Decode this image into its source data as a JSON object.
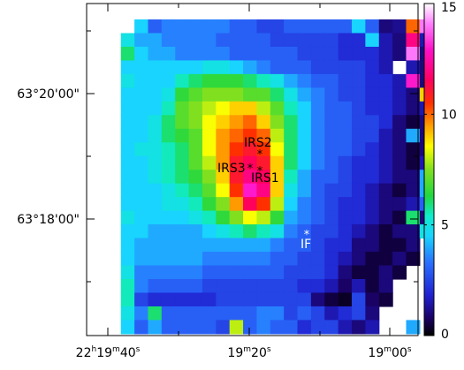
{
  "chart_data": {
    "type": "heatmap",
    "title": "",
    "xlabel": "",
    "ylabel": "",
    "x_ticks": [
      {
        "label_h": "22",
        "label_m": "19",
        "label_s": "40",
        "value_s": 80380
      },
      {
        "label_h": "",
        "label_m": "19",
        "label_s": "20",
        "value_s": 80360
      },
      {
        "label_h": "",
        "label_m": "19",
        "label_s": "00",
        "value_s": 80340
      }
    ],
    "y_ticks": [
      {
        "label": "63°20'00\"",
        "value_arcsec": 229200
      },
      {
        "label": "63°18'00\"",
        "value_arcsec": 229080
      }
    ],
    "colorbar": {
      "ticks": [
        "0",
        "5",
        "10",
        "15"
      ],
      "tick_values": [
        0,
        5,
        10,
        15
      ],
      "range": [
        0,
        15
      ],
      "colormap": "rainbow (black-blue-cyan-green-yellow-red-magenta-white)"
    },
    "sources": [
      {
        "label": "IRS2",
        "label_color": "#000000"
      },
      {
        "label": "IRS3",
        "label_color": "#000000"
      },
      {
        "label": "IRS1",
        "label_color": "#000000"
      },
      {
        "label": "IF",
        "label_color": "#ffffff"
      }
    ],
    "intensity_grid": [
      [
        -1,
        -1,
        -1,
        4.5,
        3.0,
        3.5,
        3.5,
        3.5,
        3.5,
        3.5,
        3.0,
        3.0,
        2.5,
        2.5,
        3.0,
        3.0,
        3.0,
        3.0,
        3.0,
        4.5,
        3.0,
        1.0,
        1.2,
        10.0,
        14.0
      ],
      [
        -1,
        -1,
        5.0,
        4.0,
        4.0,
        3.5,
        3.5,
        3.5,
        3.5,
        3.0,
        3.0,
        3.0,
        3.0,
        2.5,
        2.5,
        2.5,
        2.5,
        2.5,
        2.0,
        2.0,
        4.5,
        1.5,
        1.0,
        12.0,
        1.5
      ],
      [
        -1,
        -1,
        6.0,
        4.5,
        4.0,
        4.0,
        3.5,
        3.5,
        3.5,
        3.5,
        3.0,
        3.0,
        3.0,
        3.0,
        3.0,
        2.5,
        2.5,
        2.5,
        2.0,
        2.0,
        2.0,
        1.5,
        1.0,
        14.0,
        1.0
      ],
      [
        -1,
        -1,
        4.5,
        4.5,
        4.5,
        4.5,
        4.5,
        4.5,
        5.0,
        5.0,
        4.5,
        4.0,
        3.5,
        3.0,
        3.0,
        3.0,
        2.5,
        2.5,
        2.5,
        2.5,
        2.0,
        1.5,
        -1,
        1.5,
        1.0
      ],
      [
        -1,
        -1,
        5.0,
        4.5,
        4.5,
        4.5,
        5.5,
        6.0,
        6.5,
        6.5,
        6.5,
        6.0,
        5.5,
        5.0,
        4.0,
        3.5,
        3.0,
        3.0,
        2.5,
        2.5,
        2.0,
        2.0,
        1.5,
        13.0,
        1.0
      ],
      [
        -1,
        -1,
        4.5,
        4.5,
        4.5,
        5.0,
        6.5,
        7.0,
        7.5,
        7.5,
        7.5,
        7.0,
        7.0,
        6.0,
        5.0,
        4.0,
        3.5,
        3.0,
        2.5,
        2.5,
        2.0,
        2.0,
        1.5,
        1.0,
        9.0
      ],
      [
        -1,
        -1,
        4.5,
        4.5,
        4.5,
        5.5,
        7.0,
        7.5,
        8.0,
        8.5,
        9.0,
        9.0,
        8.0,
        7.0,
        5.5,
        4.5,
        3.5,
        3.0,
        3.0,
        2.5,
        2.0,
        2.0,
        1.5,
        1.0,
        1.5
      ],
      [
        -1,
        -1,
        4.5,
        4.5,
        5.0,
        6.0,
        7.0,
        7.5,
        8.5,
        9.0,
        9.5,
        10.0,
        9.0,
        7.5,
        6.0,
        4.5,
        3.5,
        3.0,
        3.0,
        2.5,
        2.5,
        2.0,
        1.0,
        0.5,
        1.0
      ],
      [
        -1,
        -1,
        4.5,
        4.5,
        5.0,
        6.0,
        6.5,
        7.0,
        8.5,
        9.5,
        10.0,
        10.5,
        10.0,
        8.0,
        6.0,
        4.5,
        3.5,
        3.0,
        3.0,
        2.5,
        2.5,
        1.5,
        1.0,
        4.0,
        1.0
      ],
      [
        -1,
        -1,
        4.5,
        5.0,
        5.0,
        5.5,
        6.0,
        7.0,
        8.5,
        9.5,
        10.5,
        11.0,
        10.5,
        8.5,
        6.0,
        4.5,
        3.5,
        3.0,
        3.0,
        2.5,
        2.0,
        1.5,
        1.0,
        0.5,
        1.0
      ],
      [
        -1,
        -1,
        4.5,
        4.5,
        5.0,
        5.5,
        6.0,
        7.0,
        8.0,
        9.5,
        11.0,
        11.5,
        11.0,
        9.0,
        6.0,
        4.5,
        3.5,
        3.0,
        2.5,
        2.0,
        2.0,
        1.5,
        1.0,
        0.5,
        1.5
      ],
      [
        -1,
        -1,
        4.5,
        4.5,
        5.0,
        5.5,
        6.0,
        6.5,
        7.5,
        9.0,
        11.0,
        12.0,
        11.5,
        9.0,
        5.5,
        4.0,
        3.0,
        3.0,
        2.5,
        2.0,
        2.0,
        1.5,
        1.0,
        1.0,
        4.0
      ],
      [
        -1,
        -1,
        4.5,
        4.5,
        4.5,
        5.0,
        5.5,
        6.0,
        7.0,
        8.5,
        10.5,
        13.0,
        12.0,
        9.0,
        5.0,
        4.0,
        3.0,
        2.5,
        2.5,
        2.0,
        1.5,
        1.0,
        0.5,
        1.0,
        4.0
      ],
      [
        -1,
        -1,
        4.5,
        4.5,
        4.5,
        5.0,
        5.0,
        5.5,
        6.5,
        7.5,
        9.5,
        11.5,
        10.5,
        8.0,
        4.5,
        3.5,
        3.0,
        2.5,
        2.0,
        2.0,
        1.5,
        1.0,
        1.0,
        1.5,
        3.0
      ],
      [
        -1,
        -1,
        5.0,
        4.5,
        4.5,
        4.5,
        4.5,
        5.0,
        5.5,
        6.5,
        7.5,
        8.5,
        8.0,
        6.5,
        4.0,
        3.5,
        3.0,
        2.5,
        2.0,
        2.0,
        1.5,
        1.0,
        0.5,
        6.0,
        1.0
      ],
      [
        -1,
        -1,
        4.5,
        4.5,
        4.0,
        4.0,
        4.0,
        4.0,
        4.5,
        5.0,
        5.5,
        6.0,
        5.5,
        5.0,
        3.5,
        3.0,
        2.5,
        2.5,
        2.0,
        1.5,
        1.0,
        0.5,
        1.0,
        1.0,
        5.0
      ],
      [
        -1,
        -1,
        4.5,
        4.0,
        4.0,
        4.0,
        4.0,
        4.0,
        4.0,
        4.0,
        4.0,
        4.0,
        4.0,
        3.5,
        3.0,
        3.0,
        2.5,
        2.0,
        2.0,
        1.0,
        1.0,
        0.5,
        0.5,
        1.0,
        -1
      ],
      [
        -1,
        -1,
        4.5,
        4.0,
        4.0,
        4.0,
        4.0,
        4.0,
        3.5,
        3.5,
        3.5,
        3.5,
        3.5,
        3.0,
        3.0,
        2.5,
        2.5,
        2.0,
        1.5,
        1.0,
        0.5,
        0.5,
        1.0,
        0.5,
        -1
      ],
      [
        -1,
        -1,
        5.0,
        3.5,
        3.5,
        3.5,
        3.5,
        3.5,
        3.0,
        3.0,
        3.0,
        3.0,
        3.0,
        3.0,
        2.5,
        2.5,
        2.5,
        2.0,
        1.0,
        0.5,
        0.5,
        1.0,
        0.5,
        -1,
        -1
      ],
      [
        -1,
        -1,
        5.5,
        3.5,
        3.0,
        3.0,
        3.0,
        3.0,
        2.5,
        2.5,
        2.5,
        2.5,
        2.5,
        2.5,
        2.5,
        2.0,
        2.0,
        1.5,
        0.8,
        1.5,
        0.5,
        1.0,
        -1,
        -1,
        -1
      ],
      [
        -1,
        -1,
        5.5,
        2.5,
        2.0,
        2.0,
        2.0,
        2.0,
        2.0,
        2.5,
        2.5,
        2.5,
        2.5,
        2.5,
        2.5,
        2.5,
        1.0,
        0.5,
        0.3,
        2.5,
        0.8,
        0.5,
        -1,
        -1,
        -1
      ],
      [
        -1,
        -1,
        5.0,
        3.5,
        6.0,
        3.0,
        3.0,
        3.0,
        3.0,
        3.0,
        3.0,
        3.0,
        3.5,
        3.5,
        2.5,
        3.0,
        2.5,
        1.5,
        2.0,
        2.5,
        1.0,
        -1,
        -1,
        -1,
        -1
      ],
      [
        -1,
        -1,
        4.5,
        3.0,
        4.0,
        3.0,
        3.0,
        3.0,
        3.0,
        2.5,
        8.0,
        3.0,
        3.5,
        3.0,
        3.0,
        2.0,
        2.5,
        2.5,
        1.5,
        1.0,
        1.5,
        -1,
        -1,
        4.0,
        -1
      ]
    ]
  }
}
